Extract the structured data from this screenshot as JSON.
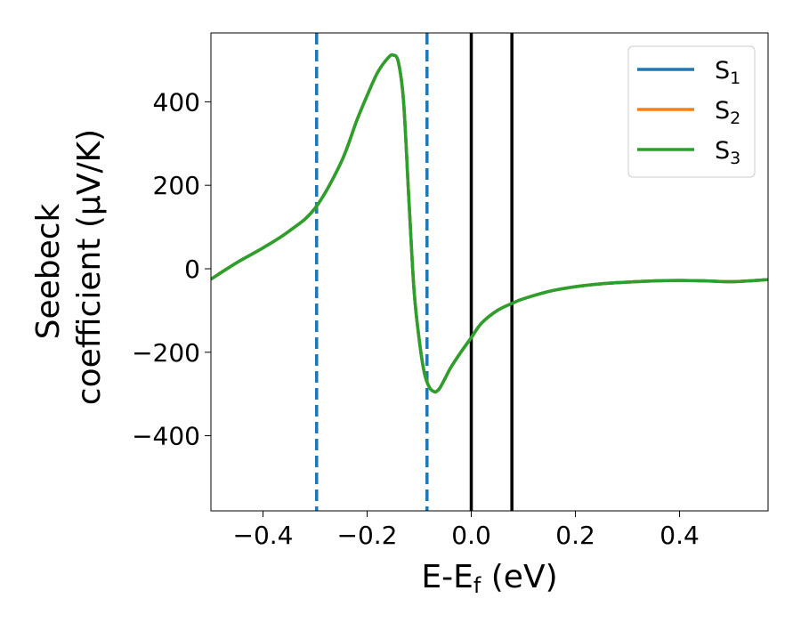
{
  "chart_data": {
    "type": "line",
    "xlabel": {
      "main": "E-E",
      "sub": "f",
      "unit": " (eV)"
    },
    "ylabel": {
      "line1": "Seebeck",
      "line2": "coefficient  (μV/K)"
    },
    "xlim": [
      -0.5,
      0.57
    ],
    "ylim": [
      -580,
      565
    ],
    "xticks": [
      -0.4,
      -0.2,
      0.0,
      0.2,
      0.4
    ],
    "xtick_labels": [
      "−0.4",
      "−0.2",
      "0.0",
      "0.2",
      "0.4"
    ],
    "yticks": [
      400,
      200,
      0,
      -200,
      -400
    ],
    "ytick_labels": [
      "400",
      "200",
      "0",
      "−200",
      "−400"
    ],
    "grid": false,
    "legend_position": "top-right",
    "x": [
      -0.5,
      -0.45,
      -0.4,
      -0.35,
      -0.3,
      -0.25,
      -0.22,
      -0.2,
      -0.18,
      -0.16,
      -0.15,
      -0.14,
      -0.13,
      -0.12,
      -0.11,
      -0.1,
      -0.09,
      -0.08,
      -0.07,
      -0.065,
      -0.06,
      -0.05,
      -0.04,
      -0.02,
      0.0,
      0.02,
      0.05,
      0.08,
      0.1,
      0.15,
      0.2,
      0.25,
      0.3,
      0.35,
      0.4,
      0.45,
      0.5,
      0.57
    ],
    "series": [
      {
        "name": "S",
        "sub": "1",
        "color": "#1f77b4",
        "values": [
          -25,
          15,
          50,
          90,
          145,
          255,
          355,
          415,
          470,
          505,
          512,
          495,
          400,
          170,
          -50,
          -170,
          -250,
          -285,
          -295,
          -292,
          -285,
          -262,
          -238,
          -200,
          -165,
          -130,
          -100,
          -82,
          -72,
          -54,
          -43,
          -36,
          -32,
          -29,
          -28,
          -29,
          -31,
          -26
        ]
      },
      {
        "name": "S",
        "sub": "2",
        "color": "#ff7f0e",
        "values": [
          -25,
          15,
          50,
          90,
          145,
          255,
          355,
          415,
          470,
          505,
          512,
          495,
          400,
          170,
          -50,
          -170,
          -250,
          -285,
          -295,
          -292,
          -285,
          -262,
          -238,
          -200,
          -165,
          -130,
          -100,
          -82,
          -72,
          -54,
          -43,
          -36,
          -32,
          -29,
          -28,
          -29,
          -31,
          -26
        ]
      },
      {
        "name": "S",
        "sub": "3",
        "color": "#2ca02c",
        "values": [
          -25,
          15,
          50,
          90,
          145,
          255,
          355,
          415,
          470,
          505,
          512,
          495,
          400,
          170,
          -50,
          -170,
          -250,
          -285,
          -295,
          -292,
          -285,
          -262,
          -238,
          -200,
          -165,
          -130,
          -100,
          -82,
          -72,
          -54,
          -43,
          -36,
          -32,
          -29,
          -28,
          -29,
          -31,
          -26
        ]
      }
    ],
    "vlines": [
      {
        "x": -0.297,
        "style": "dashed",
        "color": "#1f77b4"
      },
      {
        "x": -0.085,
        "style": "dashed",
        "color": "#1f77b4"
      },
      {
        "x": 0.0,
        "style": "solid",
        "color": "#000000"
      },
      {
        "x": 0.078,
        "style": "solid",
        "color": "#000000"
      }
    ]
  }
}
